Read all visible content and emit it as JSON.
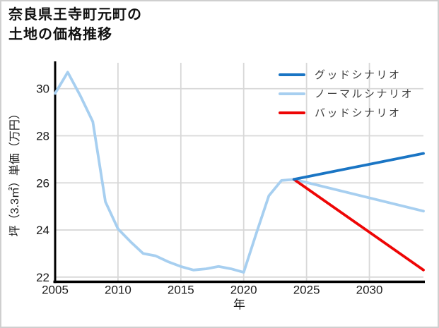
{
  "page": {
    "title_line1": "奈良県王寺町元町の",
    "title_line2": "土地の価格推移"
  },
  "chart_data": {
    "type": "line",
    "title": "奈良県王寺町元町の土地の価格推移",
    "xlabel": "年",
    "ylabel": "坪（3.3㎡）単価（万円）",
    "x_ticks": [
      2005,
      2010,
      2015,
      2020,
      2025,
      2030
    ],
    "y_ticks": [
      22,
      24,
      26,
      28,
      30
    ],
    "xlim": [
      2005,
      2034.3
    ],
    "ylim": [
      21.8,
      31.1
    ],
    "grid": true,
    "legend_position": "upper right",
    "unit": "万円/坪",
    "colors": {
      "grid": "#d8d8d8",
      "spine": "#000000",
      "tick_label": "#1a1a1a",
      "axis_label": "#1a1a1a",
      "history": "#a7cff0",
      "good": "#1a75c4",
      "normal": "#a7cff0",
      "bad": "#ee0505"
    },
    "series": [
      {
        "id": "history",
        "label": "",
        "color": "#a7cff0",
        "x": [
          2005,
          2006,
          2007,
          2008,
          2009,
          2010,
          2011,
          2012,
          2013,
          2014,
          2015,
          2016,
          2017,
          2018,
          2019,
          2020,
          2021,
          2022,
          2023,
          2024
        ],
        "values": [
          29.8,
          30.7,
          29.7,
          28.6,
          25.2,
          24.05,
          23.5,
          23.0,
          22.9,
          22.65,
          22.45,
          22.3,
          22.35,
          22.45,
          22.35,
          22.2,
          23.85,
          25.45,
          26.1,
          26.15
        ]
      },
      {
        "id": "normal-scenario",
        "label": "ノーマルシナリオ",
        "color": "#a7cff0",
        "x": [
          2024,
          2034.3
        ],
        "values": [
          26.15,
          24.8
        ]
      },
      {
        "id": "bad-scenario",
        "label": "バッドシナリオ",
        "color": "#ee0505",
        "x": [
          2024,
          2034.3
        ],
        "values": [
          26.15,
          22.3
        ]
      },
      {
        "id": "good-scenario",
        "label": "グッドシナリオ",
        "color": "#1a75c4",
        "x": [
          2024,
          2034.3
        ],
        "values": [
          26.15,
          27.25
        ]
      }
    ],
    "legend": [
      {
        "label": "グッドシナリオ",
        "color": "#1a75c4"
      },
      {
        "label": "ノーマルシナリオ",
        "color": "#a7cff0"
      },
      {
        "label": "バッドシナリオ",
        "color": "#ee0505"
      }
    ]
  }
}
